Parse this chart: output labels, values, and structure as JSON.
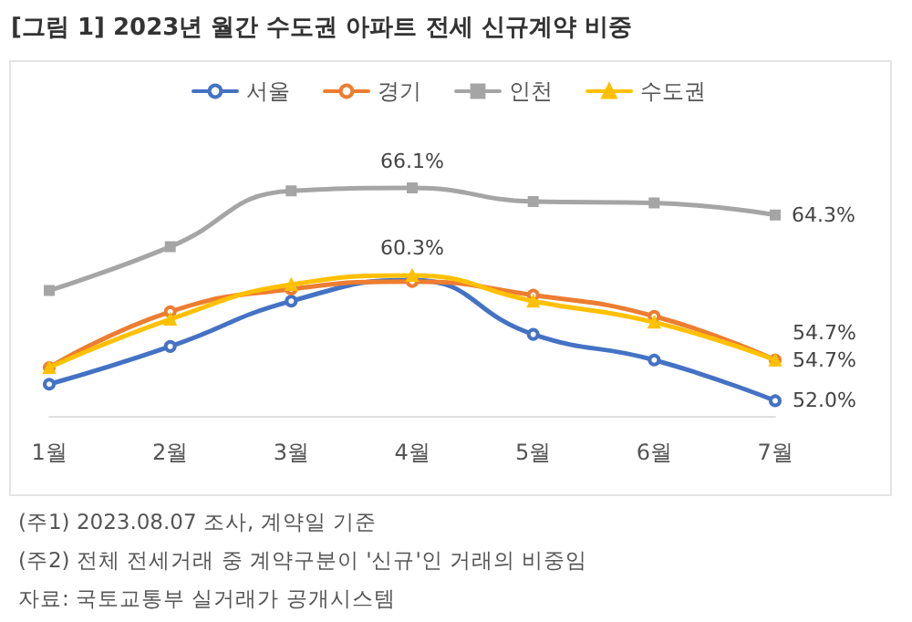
{
  "chart_data": {
    "type": "line",
    "title": "[그림 1] 2023년 월간 수도권 아파트 전세 신규계약 비중",
    "categories": [
      "1월",
      "2월",
      "3월",
      "4월",
      "5월",
      "6월",
      "7월"
    ],
    "series": [
      {
        "name": "서울",
        "color": "#4472c4",
        "marker": "circle",
        "values": [
          53.1,
          55.6,
          58.6,
          60.0,
          56.4,
          54.7,
          52.0
        ],
        "value_labels": [
          null,
          null,
          null,
          null,
          null,
          null,
          "52.0%"
        ]
      },
      {
        "name": "경기",
        "color": "#ed7d31",
        "marker": "circle",
        "values": [
          54.2,
          57.9,
          59.4,
          59.9,
          59.0,
          57.6,
          54.7
        ],
        "value_labels": [
          null,
          null,
          null,
          null,
          null,
          null,
          "54.7%"
        ]
      },
      {
        "name": "인천",
        "color": "#a5a5a5",
        "marker": "square",
        "values": [
          59.3,
          62.2,
          65.9,
          66.1,
          65.2,
          65.1,
          64.3
        ],
        "value_labels": [
          null,
          null,
          null,
          "66.1%",
          null,
          null,
          "64.3%"
        ]
      },
      {
        "name": "수도권",
        "color": "#ffc000",
        "marker": "triangle",
        "values": [
          54.2,
          57.4,
          59.7,
          60.3,
          58.6,
          57.2,
          54.7
        ],
        "value_labels": [
          null,
          null,
          null,
          "60.3%",
          null,
          null,
          "54.7%"
        ]
      }
    ],
    "grid": false,
    "legend": "top",
    "line_style": "solid",
    "annotations": [
      "(주1) 2023.08.07 조사, 계약일 기준",
      "(주2) 전체 전세거래 중 계약구분이 '신규'인 거래의 비중임",
      "자료: 국토교통부 실거래가 공개시스템"
    ]
  }
}
